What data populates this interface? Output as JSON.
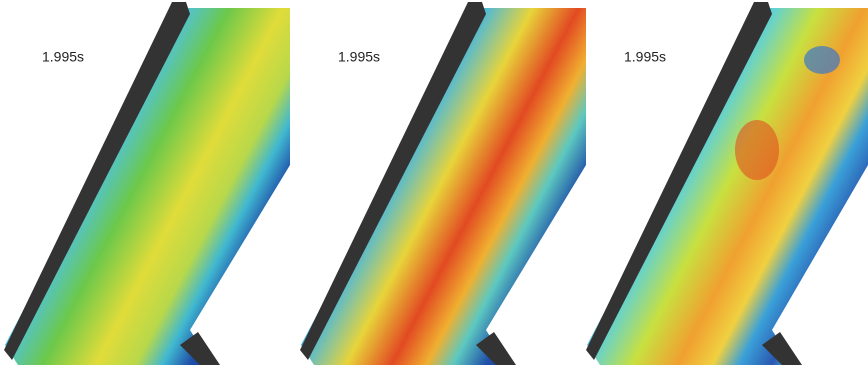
{
  "panels": [
    {
      "label": "1.995s"
    },
    {
      "label": "1.995s"
    },
    {
      "label": "1.995s"
    }
  ]
}
